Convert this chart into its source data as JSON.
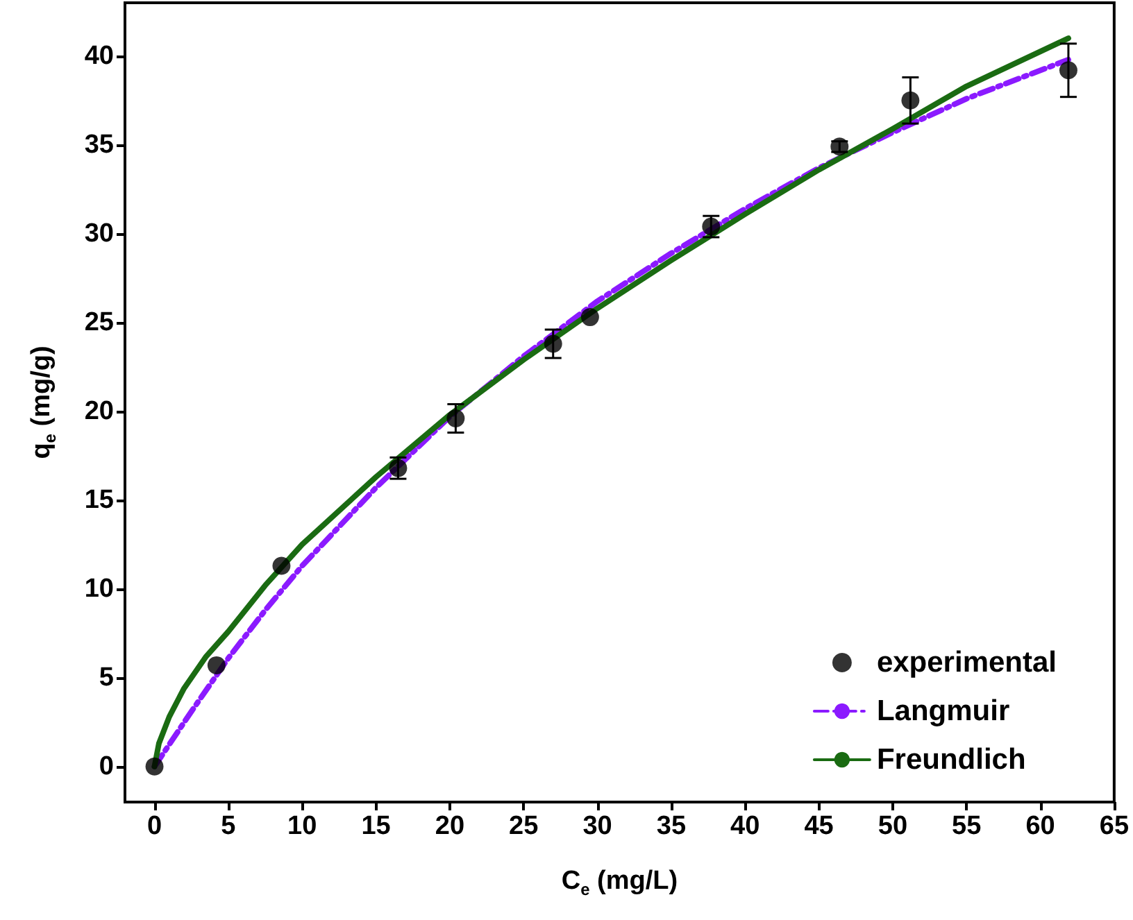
{
  "chart_data": {
    "type": "scatter",
    "xlabel": "C$_{e}$ (mg/L)",
    "ylabel": "q$_{e}$ (mg/g)",
    "xlim": [
      -2,
      65
    ],
    "xticks": [
      0,
      5,
      10,
      15,
      20,
      25,
      30,
      35,
      40,
      45,
      50,
      55,
      60,
      65
    ],
    "ylim": [
      -2,
      43
    ],
    "yticks": [
      0,
      5,
      10,
      15,
      20,
      25,
      30,
      35,
      40
    ],
    "grid": false,
    "legend": "bottom right",
    "series": [
      {
        "name": "experimental",
        "marker": "circle",
        "color": "#000000",
        "x": [
          0,
          4.2,
          8.6,
          16.5,
          20.4,
          27,
          29.5,
          37.7,
          46.4,
          51.2,
          61.9
        ],
        "values": [
          0,
          5.7,
          11.3,
          16.8,
          19.6,
          23.8,
          25.3,
          30.4,
          34.9,
          37.5,
          39.2
        ],
        "errors": [
          null,
          null,
          null,
          0.6,
          0.8,
          0.8,
          null,
          0.6,
          0.3,
          1.3,
          1.5
        ]
      },
      {
        "name": "Langmuir",
        "type": "line",
        "marker": "none",
        "line_style": "dashed",
        "color": "#8b1aff",
        "x": [
          0,
          2.5,
          5,
          7.5,
          10,
          15,
          20,
          25,
          30,
          35,
          40,
          45,
          50,
          55,
          61.9
        ],
        "values": [
          0,
          3.1,
          6.1,
          8.8,
          11.3,
          15.7,
          19.7,
          23.1,
          26.2,
          28.9,
          31.4,
          33.7,
          35.7,
          37.6,
          39.8
        ]
      },
      {
        "name": "Freundlich",
        "type": "line",
        "marker": "none",
        "line_style": "solid",
        "color": "#1a6b12",
        "x": [
          0,
          0.3,
          1,
          2,
          3.5,
          5,
          7.5,
          10,
          15,
          20,
          25,
          30,
          35,
          40,
          45,
          50,
          55,
          61.9
        ],
        "values": [
          0,
          1.3,
          2.8,
          4.4,
          6.2,
          7.6,
          10.2,
          12.5,
          16.3,
          19.8,
          22.9,
          25.8,
          28.5,
          31.1,
          33.6,
          35.9,
          38.3,
          41
        ]
      }
    ]
  }
}
